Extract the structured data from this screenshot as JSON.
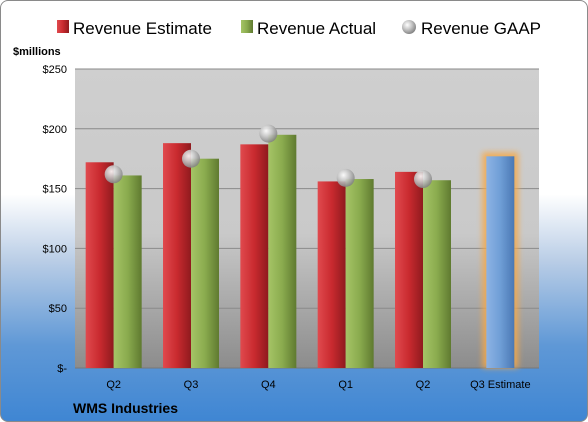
{
  "chart_data": {
    "type": "bar",
    "title": "",
    "xlabel": "",
    "ylabel": "$millions",
    "categories": [
      "Q2",
      "Q3",
      "Q4",
      "Q1",
      "Q2",
      "Q3 Estimate"
    ],
    "ylim": [
      0,
      250
    ],
    "y_ticks": [
      {
        "value": 0,
        "label": "$-"
      },
      {
        "value": 50,
        "label": "$50"
      },
      {
        "value": 100,
        "label": "$100"
      },
      {
        "value": 150,
        "label": "$150"
      },
      {
        "value": 200,
        "label": "$200"
      },
      {
        "value": 250,
        "label": "$250"
      }
    ],
    "series": [
      {
        "name": "Revenue Estimate",
        "type": "bar",
        "color": "#c0282d",
        "values": [
          172,
          188,
          187,
          156,
          164,
          null
        ]
      },
      {
        "name": "Revenue Actual",
        "type": "bar",
        "color": "#86a84b",
        "values": [
          161,
          175,
          195,
          158,
          157,
          null
        ]
      },
      {
        "name": "Revenue GAAP",
        "type": "marker",
        "color": "#b7b7b7",
        "values": [
          162,
          175,
          196,
          159,
          158,
          null
        ]
      }
    ],
    "future_estimate": {
      "category": "Q3 Estimate",
      "value": 177,
      "color": "#6f9ed6",
      "glow": "#f5a94a"
    },
    "grid": true,
    "legend_position": "top",
    "plot_background": "#d9d9d9"
  },
  "footer": {
    "company": "WMS Industries"
  }
}
